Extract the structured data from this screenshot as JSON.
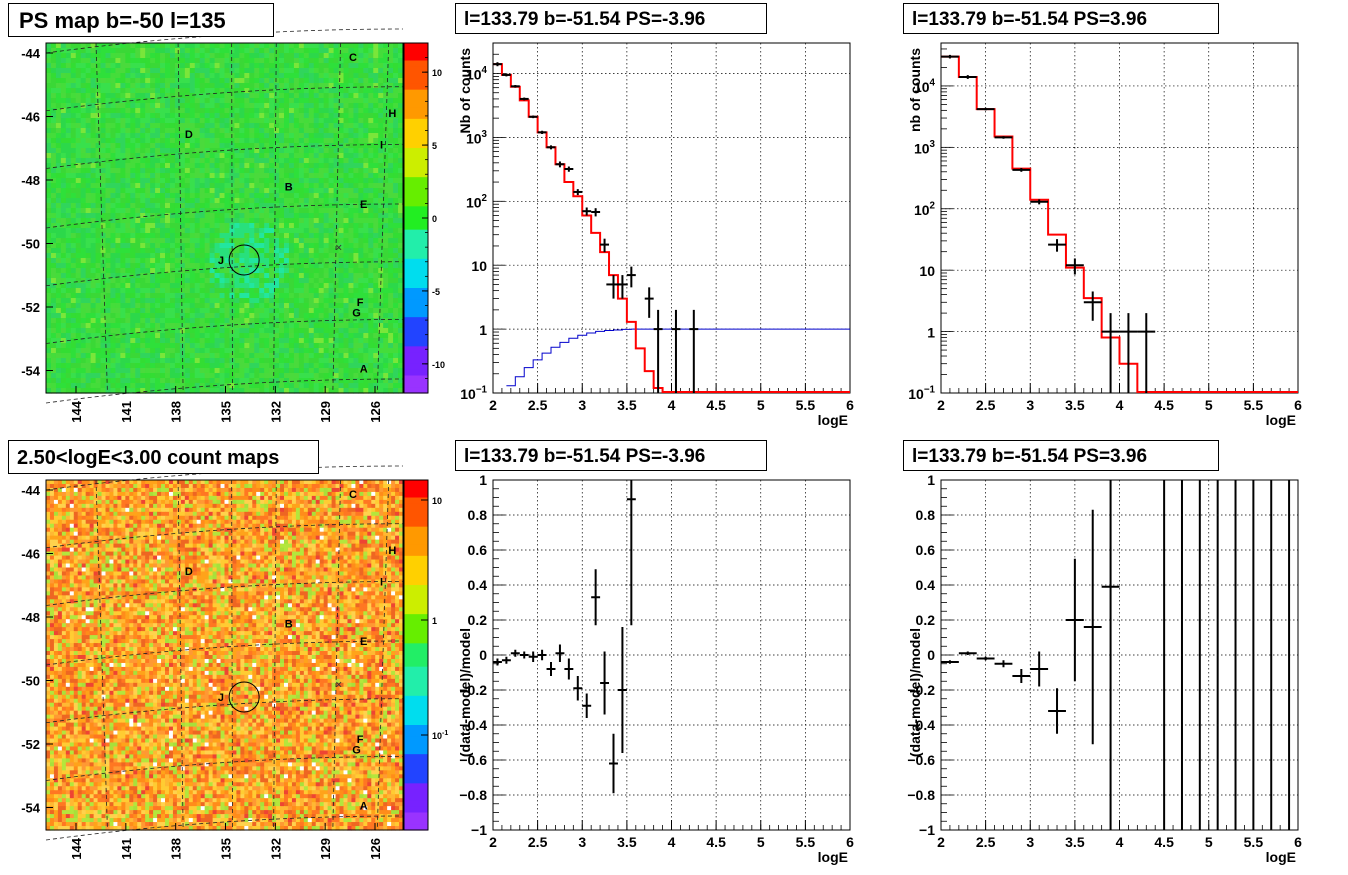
{
  "titles": {
    "map_top": "PS map b=-50 l=135",
    "map_bottom": "2.50<logE<3.00 count maps",
    "spec_left": "l=133.79 b=-51.54 PS=-3.96",
    "spec_right": "l=133.79 b=-51.54 PS=3.96",
    "res_left": "l=133.79 b=-51.54 PS=-3.96",
    "res_right": "l=133.79 b=-51.54 PS=3.96"
  },
  "colors": {
    "model_line": "#ff0000",
    "efficiency_line": "#0000cc",
    "data_points": "#000000",
    "grid": "#000000"
  },
  "chart_data": [
    {
      "type": "heatmap",
      "id": "ps_map",
      "title": "PS map b=-50 l=135",
      "x_ticks": [
        "144",
        "141",
        "138",
        "135",
        "132",
        "129",
        "126"
      ],
      "y_ticks": [
        "-44",
        "-46",
        "-48",
        "-50",
        "-52",
        "-54"
      ],
      "colorbar_ticks": [
        "10",
        "5",
        "0",
        "-5",
        "-10"
      ],
      "colorbar_range": [
        -12,
        12
      ],
      "source_labels": [
        "C",
        "H",
        "D",
        "I",
        "B",
        "E",
        "J",
        "F",
        "G",
        "A"
      ],
      "source_marker": "circle around J",
      "dominant_value": 0
    },
    {
      "type": "heatmap",
      "id": "count_map",
      "title": "2.50<logE<3.00 count maps",
      "x_ticks": [
        "144",
        "141",
        "138",
        "135",
        "132",
        "129",
        "126"
      ],
      "y_ticks": [
        "-44",
        "-46",
        "-48",
        "-50",
        "-52",
        "-54"
      ],
      "colorbar_ticks": [
        "10",
        "1",
        "10^-1"
      ],
      "colorbar_scale": "log",
      "source_labels": [
        "C",
        "H",
        "D",
        "I",
        "B",
        "E",
        "J",
        "F",
        "G",
        "A"
      ]
    },
    {
      "type": "line",
      "id": "spectrum_neg",
      "title": "l=133.79 b=-51.54 PS=-3.96",
      "xlabel": "logE",
      "ylabel": "Nb of counts",
      "xlim": [
        2,
        6
      ],
      "ylim": [
        0.1,
        30000
      ],
      "yscale": "log",
      "grid": true,
      "x_ticks": [
        "2",
        "2.5",
        "3",
        "3.5",
        "4",
        "4.5",
        "5",
        "5.5",
        "6"
      ],
      "series": [
        {
          "role": "model",
          "bins": [
            2.0,
            2.1,
            2.2,
            2.3,
            2.4,
            2.5,
            2.6,
            2.7,
            2.8,
            2.9,
            3.0,
            3.1,
            3.2,
            3.3,
            3.4,
            3.5,
            3.6,
            3.7,
            3.8,
            3.9,
            4.0,
            4.1,
            4.2,
            4.3,
            6.0
          ],
          "values": [
            14000,
            9500,
            6200,
            3800,
            2100,
            1200,
            700,
            380,
            200,
            120,
            60,
            32,
            16,
            7,
            3,
            1.3,
            0.5,
            0.22,
            0.12,
            0.1,
            0.1,
            0.1,
            0.1,
            0.1
          ]
        },
        {
          "role": "efficiency",
          "bins": [
            2.15,
            2.25,
            2.35,
            2.45,
            2.55,
            2.65,
            2.75,
            2.85,
            2.95,
            3.05,
            3.15,
            3.25,
            3.35,
            3.45,
            3.55,
            6.0
          ],
          "values": [
            0.13,
            0.18,
            0.25,
            0.33,
            0.42,
            0.52,
            0.62,
            0.72,
            0.8,
            0.87,
            0.92,
            0.95,
            0.97,
            0.99,
            1.0
          ]
        },
        {
          "role": "data",
          "points": [
            {
              "x": 2.05,
              "y": 14000,
              "ylo": 13000,
              "yhi": 15000,
              "xerr": 0.05
            },
            {
              "x": 2.15,
              "y": 9500,
              "ylo": 9000,
              "yhi": 10000,
              "xerr": 0.05
            },
            {
              "x": 2.25,
              "y": 6300,
              "ylo": 6000,
              "yhi": 6600,
              "xerr": 0.05
            },
            {
              "x": 2.35,
              "y": 4000,
              "ylo": 3800,
              "yhi": 4200,
              "xerr": 0.05
            },
            {
              "x": 2.45,
              "y": 2100,
              "ylo": 2000,
              "yhi": 2200,
              "xerr": 0.05
            },
            {
              "x": 2.55,
              "y": 1200,
              "ylo": 1130,
              "yhi": 1270,
              "xerr": 0.05
            },
            {
              "x": 2.65,
              "y": 700,
              "ylo": 650,
              "yhi": 750,
              "xerr": 0.05
            },
            {
              "x": 2.75,
              "y": 380,
              "ylo": 340,
              "yhi": 420,
              "xerr": 0.05
            },
            {
              "x": 2.85,
              "y": 320,
              "ylo": 290,
              "yhi": 350,
              "xerr": 0.05
            },
            {
              "x": 2.95,
              "y": 140,
              "ylo": 125,
              "yhi": 155,
              "xerr": 0.05
            },
            {
              "x": 3.05,
              "y": 70,
              "ylo": 60,
              "yhi": 80,
              "xerr": 0.05
            },
            {
              "x": 3.15,
              "y": 68,
              "ylo": 58,
              "yhi": 78,
              "xerr": 0.05
            },
            {
              "x": 3.25,
              "y": 21,
              "ylo": 16,
              "yhi": 26,
              "xerr": 0.05
            },
            {
              "x": 3.35,
              "y": 5,
              "ylo": 3,
              "yhi": 7,
              "xerr": 0.08
            },
            {
              "x": 3.45,
              "y": 5,
              "ylo": 3,
              "yhi": 7,
              "xerr": 0.06
            },
            {
              "x": 3.55,
              "y": 7,
              "ylo": 4.5,
              "yhi": 9.5,
              "xerr": 0.05
            },
            {
              "x": 3.75,
              "y": 3,
              "ylo": 1.5,
              "yhi": 4.5,
              "xerr": 0.05
            },
            {
              "x": 3.85,
              "y": 1,
              "ylo": 0.1,
              "yhi": 2,
              "xerr": 0.05
            },
            {
              "x": 4.05,
              "y": 1,
              "ylo": 0.1,
              "yhi": 2,
              "xerr": 0.05
            },
            {
              "x": 4.25,
              "y": 1,
              "ylo": 0.1,
              "yhi": 2,
              "xerr": 0.05
            }
          ]
        }
      ]
    },
    {
      "type": "line",
      "id": "spectrum_pos",
      "title": "l=133.79 b=-51.54 PS=3.96",
      "xlabel": "logE",
      "ylabel": "nb of counts",
      "xlim": [
        2,
        6
      ],
      "ylim": [
        0.1,
        50000
      ],
      "yscale": "log",
      "grid": true,
      "x_ticks": [
        "2",
        "2.5",
        "3",
        "3.5",
        "4",
        "4.5",
        "5",
        "5.5",
        "6"
      ],
      "series": [
        {
          "role": "model",
          "bins": [
            2.0,
            2.2,
            2.4,
            2.6,
            2.8,
            3.0,
            3.2,
            3.4,
            3.6,
            3.8,
            4.0,
            4.2,
            4.4,
            6.0
          ],
          "values": [
            30000,
            14000,
            4200,
            1500,
            450,
            140,
            38,
            11,
            3.5,
            0.8,
            0.3,
            0.1,
            0.1
          ]
        },
        {
          "role": "data",
          "points": [
            {
              "x": 2.1,
              "y": 30000,
              "ylo": 28000,
              "yhi": 32000,
              "xerr": 0.1
            },
            {
              "x": 2.3,
              "y": 14000,
              "ylo": 13000,
              "yhi": 15000,
              "xerr": 0.1
            },
            {
              "x": 2.5,
              "y": 4200,
              "ylo": 4000,
              "yhi": 4400,
              "xerr": 0.1
            },
            {
              "x": 2.7,
              "y": 1450,
              "ylo": 1380,
              "yhi": 1520,
              "xerr": 0.1
            },
            {
              "x": 2.9,
              "y": 430,
              "ylo": 400,
              "yhi": 460,
              "xerr": 0.1
            },
            {
              "x": 3.1,
              "y": 130,
              "ylo": 118,
              "yhi": 142,
              "xerr": 0.1
            },
            {
              "x": 3.3,
              "y": 26,
              "ylo": 20,
              "yhi": 32,
              "xerr": 0.1
            },
            {
              "x": 3.5,
              "y": 12,
              "ylo": 8.5,
              "yhi": 15.5,
              "xerr": 0.1
            },
            {
              "x": 3.7,
              "y": 3,
              "ylo": 1.5,
              "yhi": 4.5,
              "xerr": 0.1
            },
            {
              "x": 3.9,
              "y": 1,
              "ylo": 0.1,
              "yhi": 2,
              "xerr": 0.1
            },
            {
              "x": 4.1,
              "y": 1,
              "ylo": 0.1,
              "yhi": 2,
              "xerr": 0.1
            },
            {
              "x": 4.3,
              "y": 1,
              "ylo": 0.1,
              "yhi": 2,
              "xerr": 0.1
            }
          ]
        }
      ]
    },
    {
      "type": "scatter",
      "id": "residual_neg",
      "title": "l=133.79 b=-51.54 PS=-3.96",
      "xlabel": "logE",
      "ylabel": "(data-model)/model",
      "xlim": [
        2,
        6
      ],
      "ylim": [
        -1,
        1
      ],
      "grid": true,
      "x_ticks": [
        "2",
        "2.5",
        "3",
        "3.5",
        "4",
        "4.5",
        "5",
        "5.5",
        "6"
      ],
      "y_ticks": [
        "1",
        "0.8",
        "0.6",
        "0.4",
        "0.2",
        "0",
        "-0.2",
        "-0.4",
        "-0.6",
        "-0.8",
        "-1"
      ],
      "points": [
        {
          "x": 2.05,
          "y": -0.04,
          "ylo": -0.06,
          "yhi": -0.02,
          "xerr": 0.05
        },
        {
          "x": 2.15,
          "y": -0.03,
          "ylo": -0.05,
          "yhi": -0.01,
          "xerr": 0.05
        },
        {
          "x": 2.25,
          "y": 0.01,
          "ylo": -0.01,
          "yhi": 0.03,
          "xerr": 0.05
        },
        {
          "x": 2.35,
          "y": 0.0,
          "ylo": -0.02,
          "yhi": 0.02,
          "xerr": 0.05
        },
        {
          "x": 2.45,
          "y": -0.01,
          "ylo": -0.04,
          "yhi": 0.02,
          "xerr": 0.05
        },
        {
          "x": 2.55,
          "y": 0.0,
          "ylo": -0.03,
          "yhi": 0.03,
          "xerr": 0.05
        },
        {
          "x": 2.65,
          "y": -0.08,
          "ylo": -0.12,
          "yhi": -0.04,
          "xerr": 0.05
        },
        {
          "x": 2.75,
          "y": 0.01,
          "ylo": -0.04,
          "yhi": 0.06,
          "xerr": 0.05
        },
        {
          "x": 2.85,
          "y": -0.08,
          "ylo": -0.14,
          "yhi": -0.02,
          "xerr": 0.05
        },
        {
          "x": 2.95,
          "y": -0.19,
          "ylo": -0.26,
          "yhi": -0.12,
          "xerr": 0.05
        },
        {
          "x": 3.05,
          "y": -0.29,
          "ylo": -0.36,
          "yhi": -0.22,
          "xerr": 0.05
        },
        {
          "x": 3.15,
          "y": 0.33,
          "ylo": 0.17,
          "yhi": 0.49,
          "xerr": 0.05
        },
        {
          "x": 3.25,
          "y": -0.16,
          "ylo": -0.34,
          "yhi": 0.02,
          "xerr": 0.05
        },
        {
          "x": 3.35,
          "y": -0.62,
          "ylo": -0.79,
          "yhi": -0.45,
          "xerr": 0.05
        },
        {
          "x": 3.45,
          "y": -0.2,
          "ylo": -0.56,
          "yhi": 0.16,
          "xerr": 0.05
        },
        {
          "x": 3.55,
          "y": 0.89,
          "ylo": 0.17,
          "yhi": 1.0,
          "xerr": 0.05
        }
      ]
    },
    {
      "type": "scatter",
      "id": "residual_pos",
      "title": "l=133.79 b=-51.54 PS=3.96",
      "xlabel": "logE",
      "ylabel": "(data-model)/model",
      "xlim": [
        2,
        6
      ],
      "ylim": [
        -1,
        1
      ],
      "grid": true,
      "x_ticks": [
        "2",
        "2.5",
        "3",
        "3.5",
        "4",
        "4.5",
        "5",
        "5.5",
        "6"
      ],
      "y_ticks": [
        "1",
        "0.8",
        "0.6",
        "0.4",
        "0.2",
        "0",
        "-0.2",
        "-0.4",
        "-0.6",
        "-0.8",
        "-1"
      ],
      "points": [
        {
          "x": 2.1,
          "y": -0.04,
          "ylo": -0.05,
          "yhi": -0.03,
          "xerr": 0.1
        },
        {
          "x": 2.3,
          "y": 0.01,
          "ylo": 0.0,
          "yhi": 0.02,
          "xerr": 0.1
        },
        {
          "x": 2.5,
          "y": -0.02,
          "ylo": -0.03,
          "yhi": -0.01,
          "xerr": 0.1
        },
        {
          "x": 2.7,
          "y": -0.05,
          "ylo": -0.07,
          "yhi": -0.03,
          "xerr": 0.1
        },
        {
          "x": 2.9,
          "y": -0.12,
          "ylo": -0.16,
          "yhi": -0.08,
          "xerr": 0.1
        },
        {
          "x": 3.1,
          "y": -0.08,
          "ylo": -0.18,
          "yhi": 0.02,
          "xerr": 0.1
        },
        {
          "x": 3.3,
          "y": -0.32,
          "ylo": -0.45,
          "yhi": -0.19,
          "xerr": 0.1
        },
        {
          "x": 3.5,
          "y": 0.2,
          "ylo": -0.15,
          "yhi": 0.55,
          "xerr": 0.1
        },
        {
          "x": 3.7,
          "y": 0.16,
          "ylo": -0.51,
          "yhi": 0.83,
          "xerr": 0.1
        },
        {
          "x": 3.9,
          "y": 0.39,
          "ylo": -1.0,
          "yhi": 1.0,
          "xerr": 0.1
        },
        {
          "x": 4.5,
          "y": null,
          "ylo": -1.0,
          "yhi": 1.0,
          "xerr": 0
        },
        {
          "x": 4.7,
          "y": null,
          "ylo": -1.0,
          "yhi": 1.0,
          "xerr": 0
        },
        {
          "x": 4.9,
          "y": null,
          "ylo": -1.0,
          "yhi": 1.0,
          "xerr": 0
        },
        {
          "x": 5.1,
          "y": null,
          "ylo": -1.0,
          "yhi": 1.0,
          "xerr": 0
        },
        {
          "x": 5.3,
          "y": null,
          "ylo": -1.0,
          "yhi": 1.0,
          "xerr": 0
        },
        {
          "x": 5.5,
          "y": null,
          "ylo": -1.0,
          "yhi": 1.0,
          "xerr": 0
        },
        {
          "x": 5.7,
          "y": null,
          "ylo": -1.0,
          "yhi": 1.0,
          "xerr": 0
        },
        {
          "x": 5.9,
          "y": null,
          "ylo": -1.0,
          "yhi": 1.0,
          "xerr": 0
        }
      ]
    }
  ]
}
